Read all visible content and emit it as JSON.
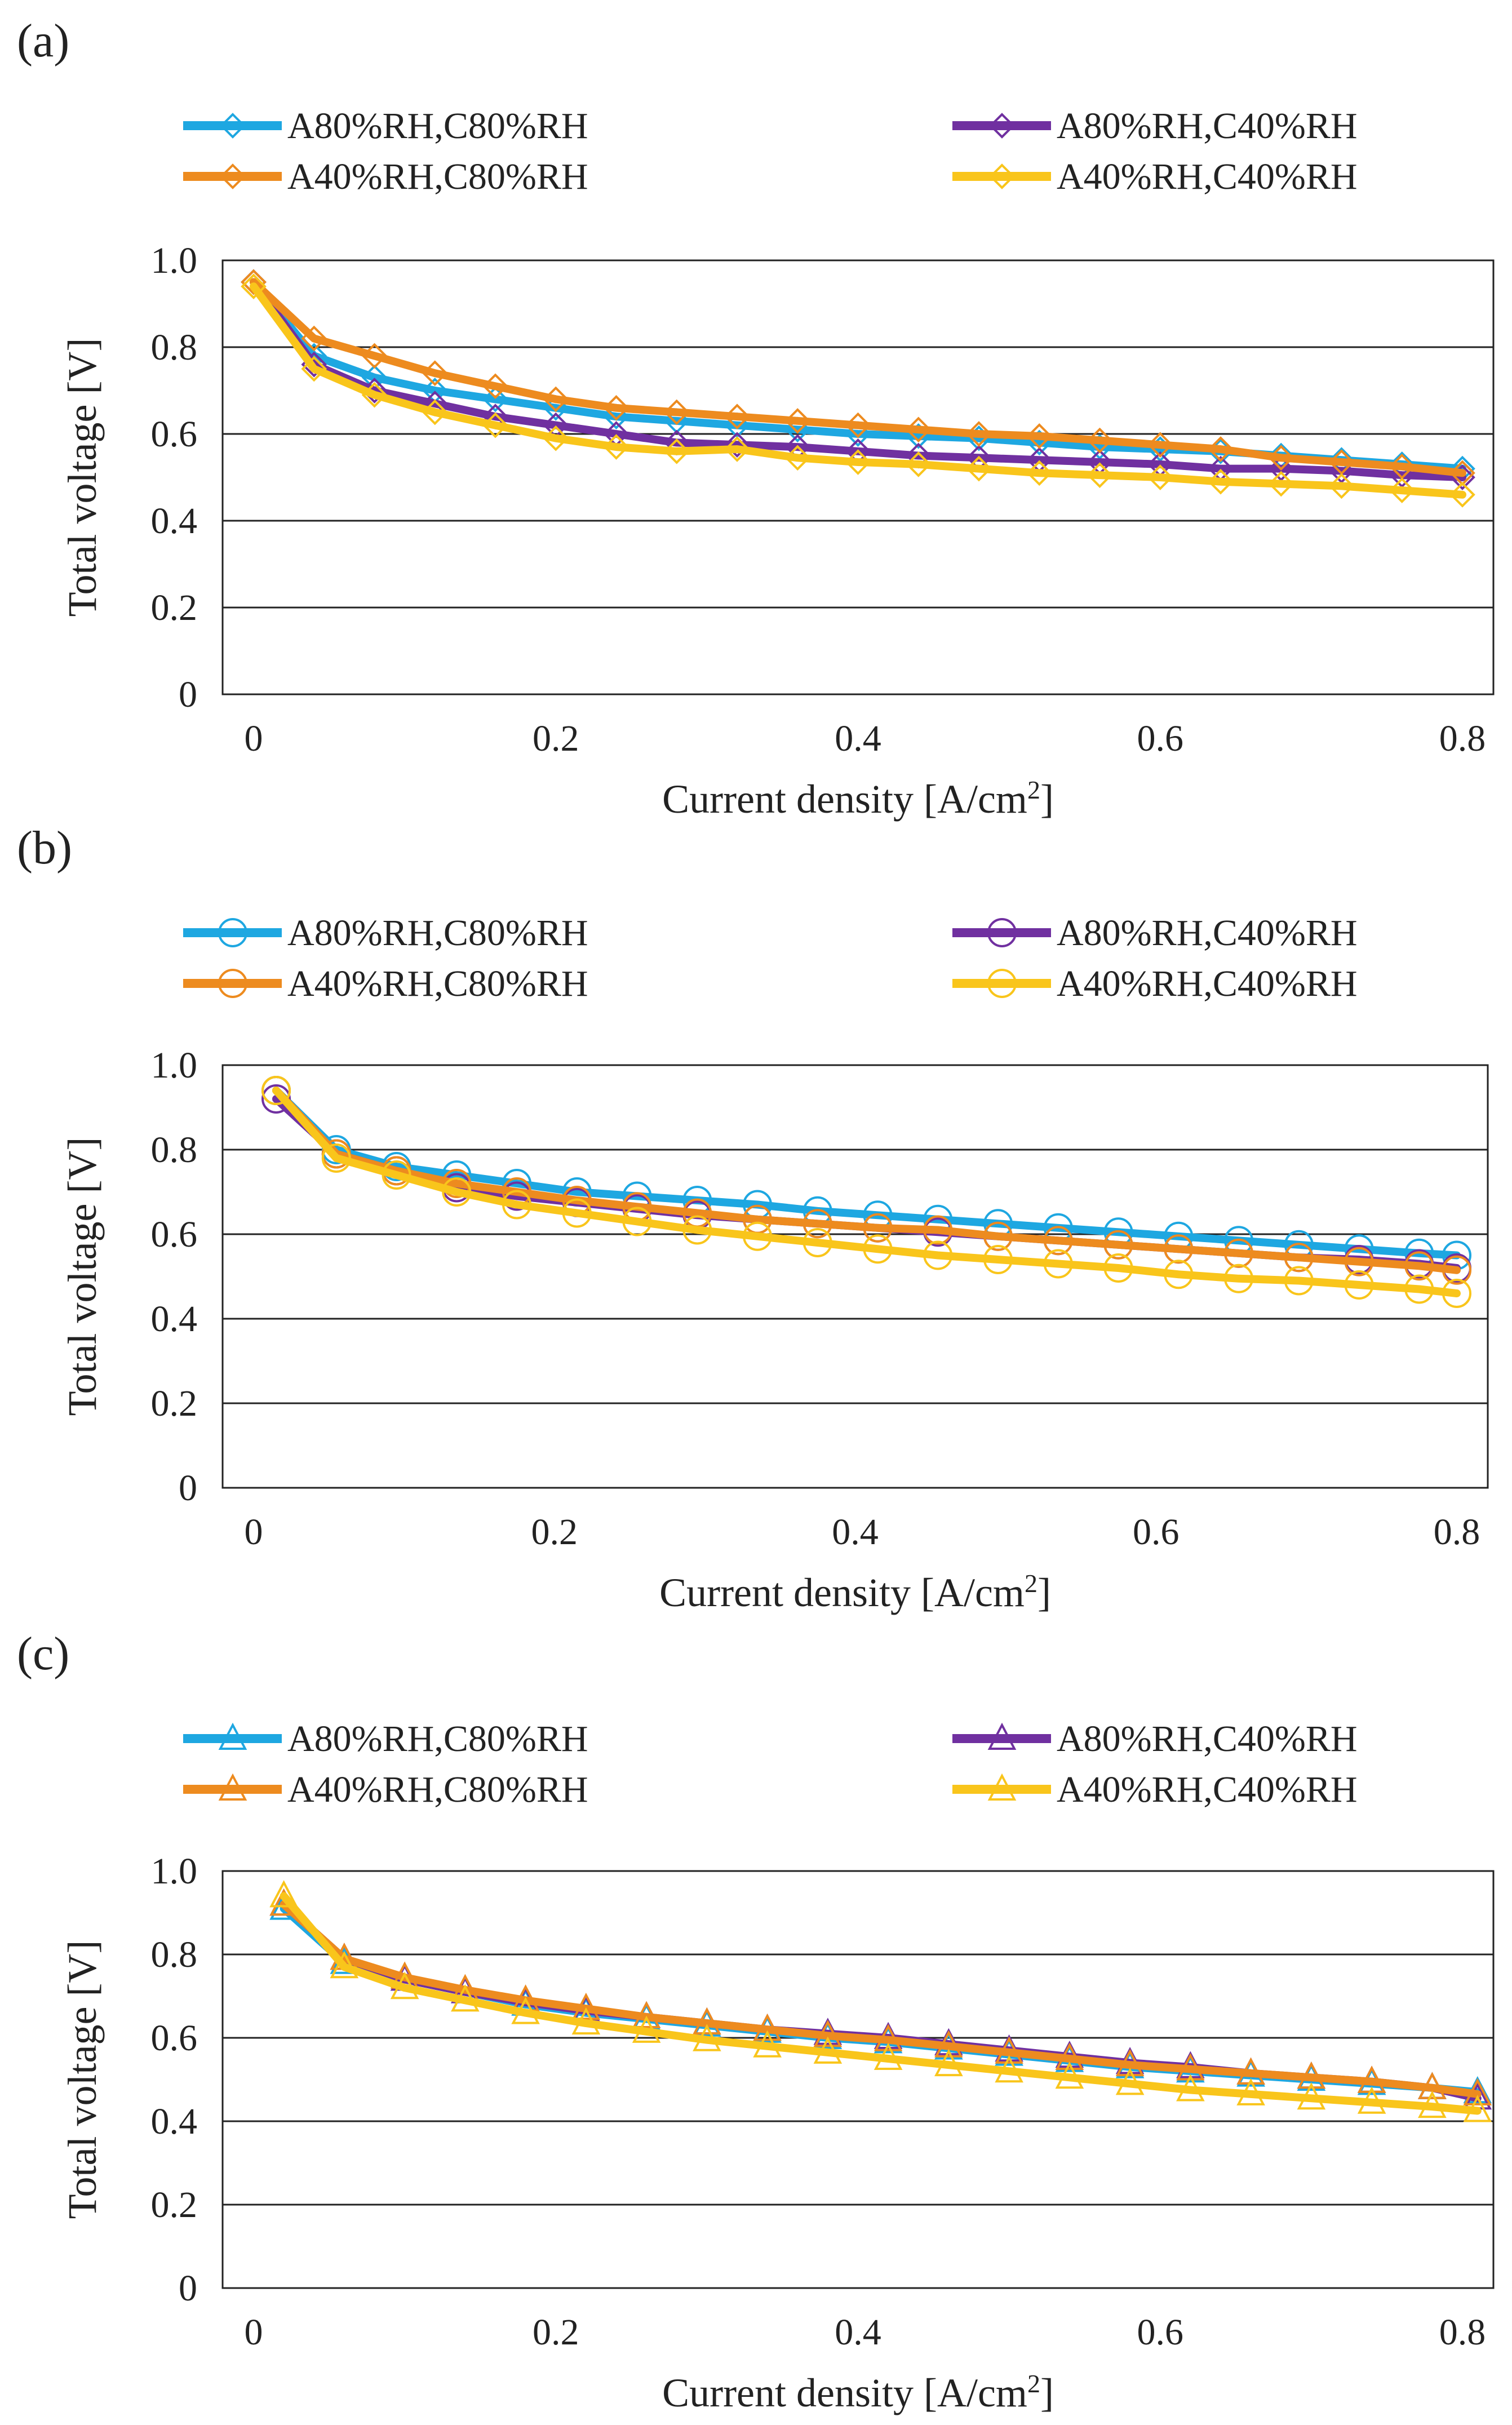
{
  "figure": {
    "panels": [
      "(a)",
      "(b)",
      "(c)"
    ]
  },
  "series_styles": [
    {
      "name": "A80%RH,C80%RH",
      "color": "#1ea7e1"
    },
    {
      "name": "A80%RH,C40%RH",
      "color": "#7030a0"
    },
    {
      "name": "A40%RH,C80%RH",
      "color": "#ed8b1f"
    },
    {
      "name": "A40%RH,C40%RH",
      "color": "#f9c51b"
    }
  ],
  "chart_data": [
    {
      "panel_label": "(a)",
      "type": "line",
      "marker": "diamond",
      "xlabel": "Current density [A/cm",
      "xlabel_sup": "2",
      "xlabel_end": "]",
      "ylabel": "Total voltage [V]",
      "xlim": [
        0,
        0.8
      ],
      "ylim": [
        0,
        1.0
      ],
      "xticks": [
        0,
        0.2,
        0.4,
        0.6,
        0.8
      ],
      "xtick_labels": [
        "0",
        "0.2",
        "0.4",
        "0.6",
        "0.8"
      ],
      "yticks": [
        0,
        0.2,
        0.4,
        0.6,
        0.8,
        1.0
      ],
      "ytick_labels": [
        "0",
        "0.2",
        "0.4",
        "0.6",
        "0.8",
        "1.0"
      ],
      "legend": [
        "A80%RH,C80%RH",
        "A80%RH,C40%RH",
        "A40%RH,C80%RH",
        "A40%RH,C40%RH"
      ],
      "x": [
        0,
        0.04,
        0.08,
        0.12,
        0.16,
        0.2,
        0.24,
        0.28,
        0.32,
        0.36,
        0.4,
        0.44,
        0.48,
        0.52,
        0.56,
        0.6,
        0.64,
        0.68,
        0.72,
        0.76,
        0.8
      ],
      "series": [
        {
          "name": "A80%RH,C80%RH",
          "values": [
            0.95,
            0.78,
            0.73,
            0.7,
            0.68,
            0.66,
            0.64,
            0.63,
            0.62,
            0.61,
            0.6,
            0.595,
            0.59,
            0.58,
            0.57,
            0.565,
            0.56,
            0.55,
            0.54,
            0.53,
            0.52
          ]
        },
        {
          "name": "A80%RH,C40%RH",
          "values": [
            0.95,
            0.76,
            0.7,
            0.67,
            0.64,
            0.62,
            0.6,
            0.58,
            0.575,
            0.57,
            0.56,
            0.55,
            0.545,
            0.54,
            0.535,
            0.53,
            0.52,
            0.52,
            0.515,
            0.505,
            0.5
          ]
        },
        {
          "name": "A40%RH,C80%RH",
          "values": [
            0.95,
            0.82,
            0.78,
            0.74,
            0.71,
            0.68,
            0.66,
            0.65,
            0.64,
            0.63,
            0.62,
            0.61,
            0.6,
            0.595,
            0.585,
            0.575,
            0.565,
            0.545,
            0.535,
            0.525,
            0.51
          ]
        },
        {
          "name": "A40%RH,C40%RH",
          "values": [
            0.94,
            0.75,
            0.69,
            0.65,
            0.62,
            0.59,
            0.57,
            0.56,
            0.565,
            0.545,
            0.535,
            0.53,
            0.52,
            0.51,
            0.505,
            0.5,
            0.49,
            0.485,
            0.48,
            0.47,
            0.46
          ]
        }
      ]
    },
    {
      "panel_label": "(b)",
      "type": "line",
      "marker": "circle",
      "xlabel": "Current density [A/cm",
      "xlabel_sup": "2",
      "xlabel_end": "]",
      "ylabel": "Total voltage [V]",
      "xlim": [
        0,
        0.8
      ],
      "ylim": [
        0,
        1.0
      ],
      "xticks": [
        0,
        0.2,
        0.4,
        0.6,
        0.8
      ],
      "xtick_labels": [
        "0",
        "0.2",
        "0.4",
        "0.6",
        "0.8"
      ],
      "yticks": [
        0,
        0.2,
        0.4,
        0.6,
        0.8,
        1.0
      ],
      "ytick_labels": [
        "0",
        "0.2",
        "0.4",
        "0.6",
        "0.8",
        "1.0"
      ],
      "legend": [
        "A80%RH,C80%RH",
        "A80%RH,C40%RH",
        "A40%RH,C80%RH",
        "A40%RH,C40%RH"
      ],
      "x": [
        0.015,
        0.055,
        0.095,
        0.135,
        0.175,
        0.215,
        0.255,
        0.295,
        0.335,
        0.375,
        0.415,
        0.455,
        0.495,
        0.535,
        0.575,
        0.615,
        0.655,
        0.695,
        0.735,
        0.775,
        0.8
      ],
      "series": [
        {
          "name": "A80%RH,C80%RH",
          "values": [
            0.94,
            0.8,
            0.76,
            0.74,
            0.72,
            0.7,
            0.69,
            0.68,
            0.67,
            0.655,
            0.645,
            0.635,
            0.625,
            0.615,
            0.605,
            0.595,
            0.585,
            0.575,
            0.565,
            0.555,
            0.55
          ]
        },
        {
          "name": "A80%RH,C40%RH",
          "values": [
            0.92,
            0.79,
            0.75,
            0.71,
            0.69,
            0.675,
            0.66,
            0.645,
            0.635,
            0.625,
            0.615,
            0.605,
            0.595,
            0.585,
            0.575,
            0.565,
            0.555,
            0.545,
            0.54,
            0.53,
            0.52
          ]
        },
        {
          "name": "A40%RH,C80%RH",
          "values": [
            0.94,
            0.79,
            0.75,
            0.72,
            0.7,
            0.68,
            0.665,
            0.65,
            0.635,
            0.625,
            0.615,
            0.61,
            0.595,
            0.585,
            0.575,
            0.565,
            0.555,
            0.545,
            0.535,
            0.525,
            0.515
          ]
        },
        {
          "name": "A40%RH,C40%RH",
          "values": [
            0.94,
            0.78,
            0.74,
            0.7,
            0.67,
            0.65,
            0.63,
            0.61,
            0.595,
            0.58,
            0.565,
            0.55,
            0.54,
            0.53,
            0.52,
            0.505,
            0.495,
            0.49,
            0.48,
            0.47,
            0.46
          ]
        }
      ]
    },
    {
      "panel_label": "(c)",
      "type": "line",
      "marker": "triangle",
      "xlabel": "Current density [A/cm",
      "xlabel_sup": "2",
      "xlabel_end": "]",
      "ylabel": "Total voltage [V]",
      "xlim": [
        0,
        0.8
      ],
      "ylim": [
        0,
        1.0
      ],
      "xticks": [
        0,
        0.2,
        0.4,
        0.6,
        0.8
      ],
      "xtick_labels": [
        "0",
        "0.2",
        "0.4",
        "0.6",
        "0.8"
      ],
      "yticks": [
        0,
        0.2,
        0.4,
        0.6,
        0.8,
        1.0
      ],
      "ytick_labels": [
        "0",
        "0.2",
        "0.4",
        "0.6",
        "0.8",
        "1.0"
      ],
      "legend": [
        "A80%RH,C80%RH",
        "A80%RH,C40%RH",
        "A40%RH,C80%RH",
        "A40%RH,C40%RH"
      ],
      "x": [
        0.02,
        0.06,
        0.1,
        0.14,
        0.18,
        0.22,
        0.26,
        0.3,
        0.34,
        0.38,
        0.42,
        0.46,
        0.5,
        0.54,
        0.58,
        0.62,
        0.66,
        0.7,
        0.74,
        0.78,
        0.81
      ],
      "series": [
        {
          "name": "A80%RH,C80%RH",
          "values": [
            0.91,
            0.78,
            0.74,
            0.71,
            0.68,
            0.66,
            0.645,
            0.63,
            0.615,
            0.6,
            0.59,
            0.575,
            0.56,
            0.545,
            0.53,
            0.52,
            0.51,
            0.5,
            0.49,
            0.48,
            0.47
          ]
        },
        {
          "name": "A80%RH,C40%RH",
          "values": [
            0.92,
            0.79,
            0.74,
            0.71,
            0.685,
            0.665,
            0.65,
            0.635,
            0.62,
            0.61,
            0.6,
            0.585,
            0.57,
            0.555,
            0.54,
            0.53,
            0.515,
            0.505,
            0.495,
            0.48,
            0.455
          ]
        },
        {
          "name": "A40%RH,C80%RH",
          "values": [
            0.92,
            0.79,
            0.745,
            0.715,
            0.69,
            0.67,
            0.65,
            0.635,
            0.62,
            0.605,
            0.595,
            0.58,
            0.565,
            0.55,
            0.535,
            0.525,
            0.515,
            0.505,
            0.495,
            0.48,
            0.465
          ]
        },
        {
          "name": "A40%RH,C40%RH",
          "values": [
            0.94,
            0.77,
            0.72,
            0.69,
            0.66,
            0.635,
            0.615,
            0.595,
            0.58,
            0.565,
            0.55,
            0.535,
            0.52,
            0.505,
            0.49,
            0.475,
            0.465,
            0.455,
            0.445,
            0.435,
            0.425
          ]
        }
      ]
    }
  ]
}
